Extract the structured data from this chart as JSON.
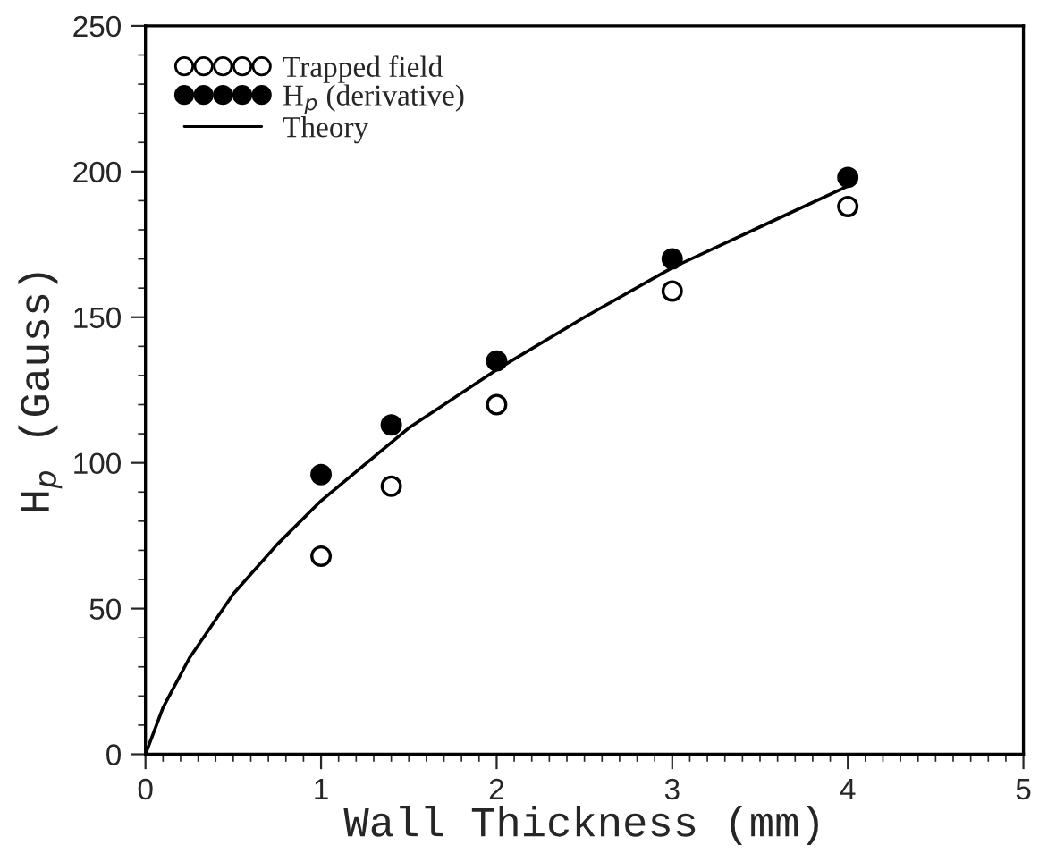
{
  "chart_data": {
    "type": "scatter",
    "xlabel": "Wall Thickness (mm)",
    "ylabel": "H$_{p}$ (Gauss)",
    "xlim": [
      0,
      5
    ],
    "xticks": [
      0,
      1,
      2,
      3,
      4,
      5
    ],
    "ylim": [
      0,
      250
    ],
    "yticks": [
      0,
      50,
      100,
      150,
      200,
      250
    ],
    "grid": false,
    "legend": "top left",
    "series": [
      {
        "name": "Trapped field",
        "marker": "circle",
        "color": "#ffffff",
        "x": [
          1,
          1.4,
          2,
          3,
          4
        ],
        "values": [
          68,
          92,
          120,
          159,
          188
        ]
      },
      {
        "name": "H$_{p}$ (derivative)",
        "marker": "circle",
        "color": "#000000",
        "x": [
          1,
          1.4,
          2,
          3,
          4
        ],
        "values": [
          96,
          113,
          135,
          170,
          198
        ]
      },
      {
        "name": "Theory",
        "type": "line",
        "marker": "none",
        "line_style": "solid",
        "color": "#000000",
        "x": [
          0,
          0.1,
          0.25,
          0.5,
          0.75,
          1,
          1.5,
          2,
          2.5,
          3,
          3.5,
          4
        ],
        "values": [
          0,
          16,
          33,
          55,
          72,
          87,
          112,
          132,
          150,
          167,
          181,
          195
        ]
      }
    ]
  }
}
